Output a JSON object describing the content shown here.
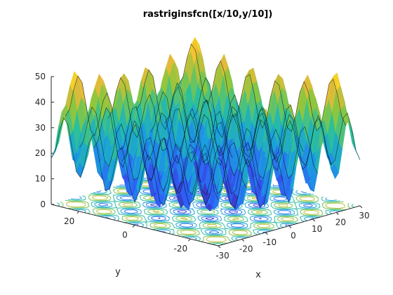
{
  "chart_data": {
    "type": "surface-contour",
    "title": "rastriginsfcn([x/10,y/10])",
    "function": "rastriginsfcn([x/10,y/10])",
    "xlabel": "x",
    "ylabel": "y",
    "zlabel": "",
    "xlim": [
      -30,
      30
    ],
    "ylim": [
      -30,
      30
    ],
    "zlim": [
      0,
      50
    ],
    "xticks": [
      -30,
      -20,
      -10,
      0,
      10,
      20,
      30
    ],
    "xtick_labels": [
      "-30",
      "-20",
      "-10",
      "0",
      "10",
      "20",
      "30"
    ],
    "yticks": [
      -20,
      0,
      20
    ],
    "ytick_labels": [
      "-20",
      "0",
      "20"
    ],
    "zticks": [
      0,
      10,
      20,
      30,
      40,
      50
    ],
    "ztick_labels": [
      "0",
      "10",
      "20",
      "30",
      "40",
      "50"
    ],
    "grid": false,
    "colormap": [
      "#3e26a8",
      "#2f5ff8",
      "#1aa0dd",
      "#2bbf9c",
      "#8dc63e",
      "#f1b93a",
      "#f9fb0e"
    ],
    "colors": {
      "axis": "#262626",
      "mesh": "#000000",
      "background": "#ffffff"
    },
    "view": "3-D surface plot with contour projection on the z = 0 floor"
  }
}
